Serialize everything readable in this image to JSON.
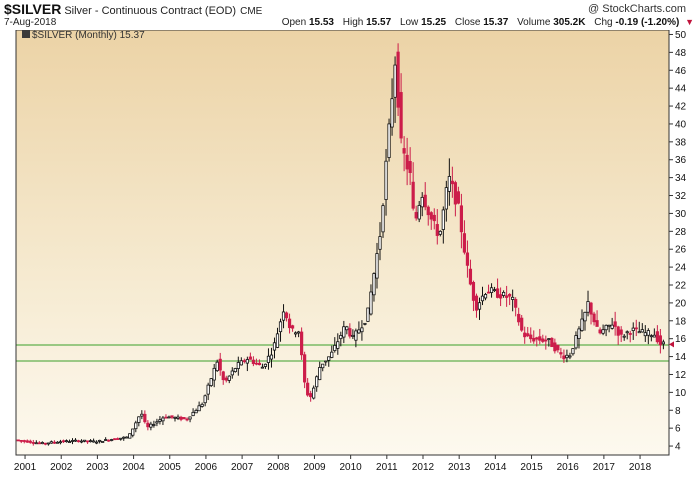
{
  "header": {
    "ticker": "$SILVER",
    "description": "Silver - Continuous Contract (EOD)",
    "exchange": "CME",
    "brand": "@ StockCharts.com",
    "date": "7-Aug-2018",
    "open_label": "Open",
    "open": "15.53",
    "high_label": "High",
    "high": "15.57",
    "low_label": "Low",
    "low": "15.25",
    "close_label": "Close",
    "close": "15.37",
    "volume_label": "Volume",
    "volume": "305.2K",
    "change_label": "Chg",
    "change": "-0.19 (-1.20%)"
  },
  "chart_data": {
    "type": "candlestick",
    "legend": "$SILVER (Monthly) 15.37",
    "legend_placement": "top-left",
    "x_ticks": [
      "2001",
      "2002",
      "2003",
      "2004",
      "2005",
      "2006",
      "2007",
      "2008",
      "2009",
      "2010",
      "2011",
      "2012",
      "2013",
      "2014",
      "2015",
      "2016",
      "2017",
      "2018"
    ],
    "y_ticks": [
      4,
      6,
      8,
      10,
      12,
      14,
      16,
      18,
      20,
      22,
      24,
      26,
      28,
      30,
      32,
      34,
      36,
      38,
      40,
      42,
      44,
      46,
      48,
      50
    ],
    "ylim": [
      3,
      50.5
    ],
    "xlim": [
      2000.75,
      2018.8
    ],
    "grid": false,
    "horizontal_lines": [
      {
        "value": 15.3,
        "color": "#3aa02a"
      },
      {
        "value": 13.5,
        "color": "#3aa02a"
      }
    ],
    "series_anchors": [
      [
        2000.75,
        4.7
      ],
      [
        2001.5,
        4.3
      ],
      [
        2002.0,
        4.5
      ],
      [
        2002.5,
        4.6
      ],
      [
        2003.0,
        4.5
      ],
      [
        2003.5,
        4.8
      ],
      [
        2003.9,
        5.0
      ],
      [
        2004.25,
        7.8
      ],
      [
        2004.4,
        6.0
      ],
      [
        2004.9,
        7.3
      ],
      [
        2005.5,
        7.0
      ],
      [
        2005.95,
        8.8
      ],
      [
        2006.35,
        13.5
      ],
      [
        2006.55,
        11.0
      ],
      [
        2006.9,
        13.0
      ],
      [
        2007.2,
        13.8
      ],
      [
        2007.6,
        12.8
      ],
      [
        2007.9,
        14.8
      ],
      [
        2008.2,
        19.5
      ],
      [
        2008.4,
        16.8
      ],
      [
        2008.6,
        17.0
      ],
      [
        2008.8,
        10.0
      ],
      [
        2008.95,
        9.5
      ],
      [
        2009.2,
        13.0
      ],
      [
        2009.5,
        14.2
      ],
      [
        2009.9,
        17.5
      ],
      [
        2010.1,
        16.0
      ],
      [
        2010.5,
        18.5
      ],
      [
        2010.85,
        27.5
      ],
      [
        2011.3,
        48.5
      ],
      [
        2011.4,
        38.0
      ],
      [
        2011.7,
        34.0
      ],
      [
        2011.8,
        28.5
      ],
      [
        2012.0,
        32.5
      ],
      [
        2012.3,
        29.0
      ],
      [
        2012.5,
        27.5
      ],
      [
        2012.75,
        34.0
      ],
      [
        2013.0,
        31.0
      ],
      [
        2013.3,
        23.0
      ],
      [
        2013.5,
        19.5
      ],
      [
        2013.8,
        21.5
      ],
      [
        2014.1,
        21.0
      ],
      [
        2014.5,
        20.5
      ],
      [
        2014.8,
        16.5
      ],
      [
        2015.0,
        16.0
      ],
      [
        2015.5,
        15.8
      ],
      [
        2015.9,
        14.0
      ],
      [
        2016.1,
        14.2
      ],
      [
        2016.5,
        18.5
      ],
      [
        2016.6,
        20.0
      ],
      [
        2016.9,
        16.5
      ],
      [
        2017.3,
        17.8
      ],
      [
        2017.5,
        16.2
      ],
      [
        2017.8,
        17.0
      ],
      [
        2018.2,
        16.6
      ],
      [
        2018.45,
        16.5
      ],
      [
        2018.6,
        15.4
      ]
    ],
    "last_value": 15.37
  }
}
